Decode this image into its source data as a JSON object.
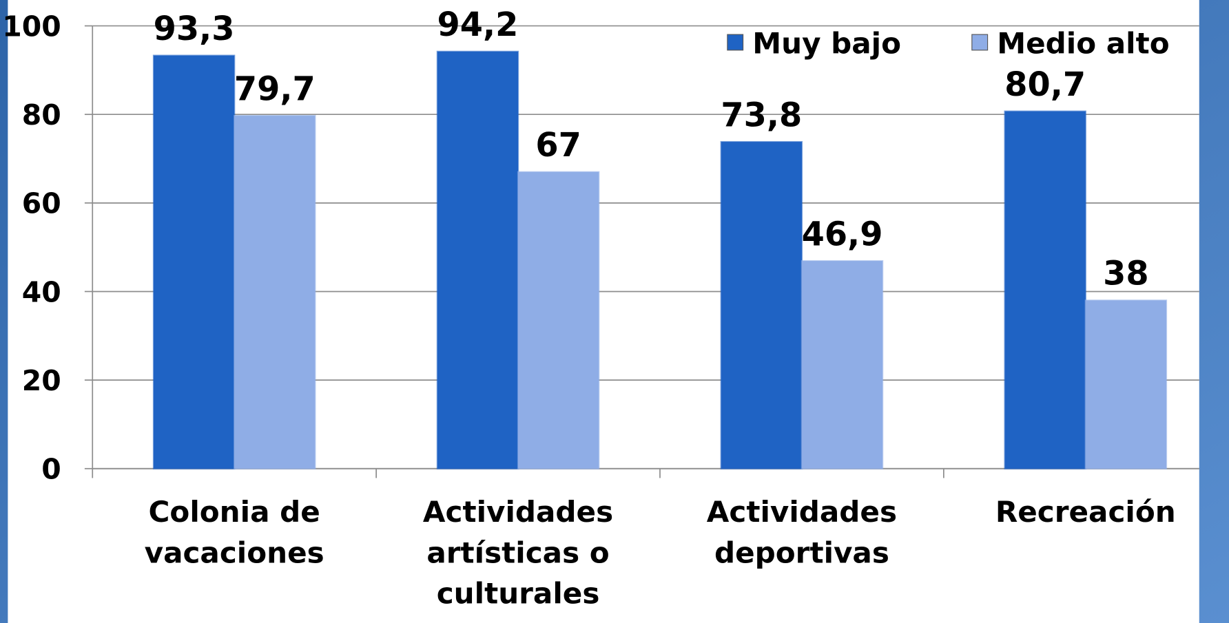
{
  "chart_data": {
    "type": "bar",
    "categories": [
      "Colonia de vacaciones",
      "Actividades artísticas o culturales",
      "Actividades deportivas",
      "Recreación"
    ],
    "series": [
      {
        "name": "Muy bajo",
        "color": "#1f63c4",
        "values": [
          93.3,
          94.2,
          73.8,
          80.7
        ],
        "value_labels": [
          "93,3",
          "94,2",
          "73,8",
          "80,7"
        ]
      },
      {
        "name": "Medio alto",
        "color": "#8fade6",
        "values": [
          79.7,
          67,
          46.9,
          38
        ],
        "value_labels": [
          "79,7",
          "67",
          "46,9",
          "38"
        ]
      }
    ],
    "ylim": [
      0,
      100
    ],
    "yticks": [
      0,
      20,
      40,
      60,
      80,
      100
    ],
    "grid": true,
    "legend": "upper right"
  }
}
